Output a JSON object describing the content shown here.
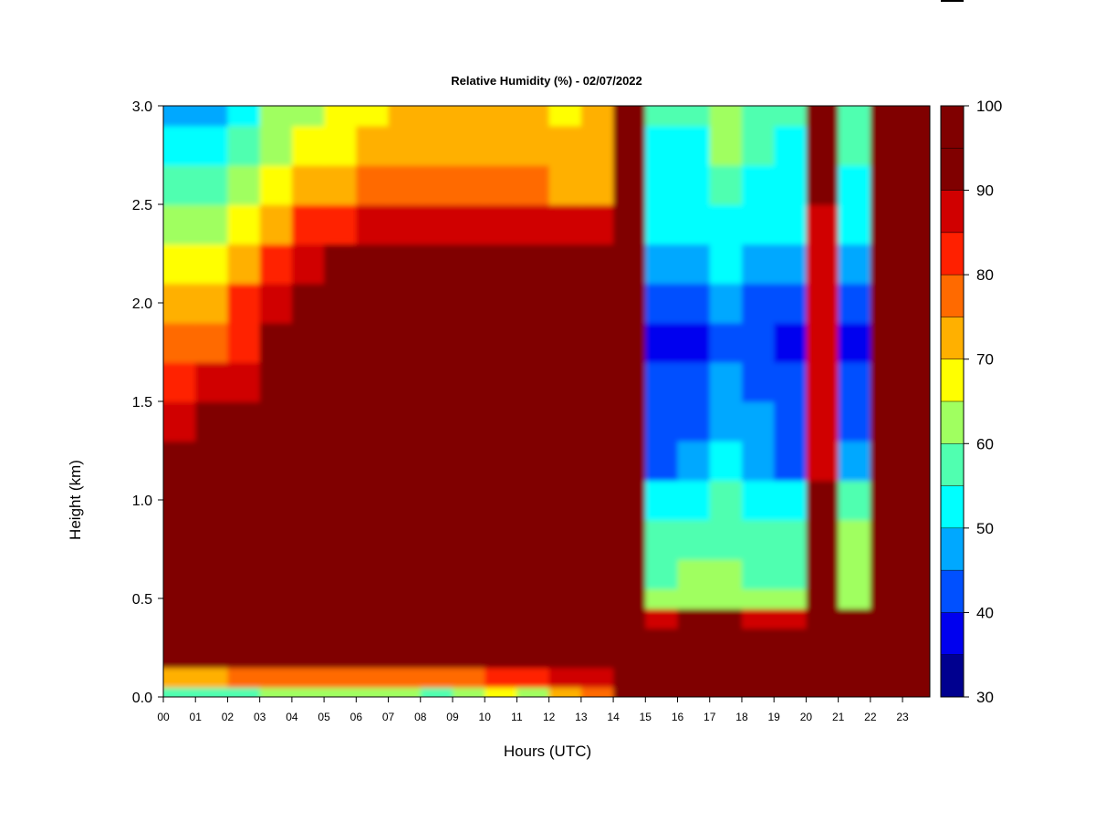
{
  "chart_data": {
    "type": "heatmap",
    "title": "Relative Humidity (%) - 02/07/2022",
    "xlabel": "Hours (UTC)",
    "ylabel": "Height (km)",
    "xlim": [
      0,
      23.85
    ],
    "ylim": [
      0,
      3.0
    ],
    "x_ticks": [
      "00",
      "01",
      "02",
      "03",
      "04",
      "05",
      "06",
      "07",
      "08",
      "09",
      "10",
      "11",
      "12",
      "13",
      "14",
      "15",
      "16",
      "17",
      "18",
      "19",
      "20",
      "21",
      "22",
      "23"
    ],
    "y_ticks": [
      "0.0",
      "0.5",
      "1.0",
      "1.5",
      "2.0",
      "2.5",
      "3.0"
    ],
    "colorbar": {
      "range": [
        30,
        100
      ],
      "tick_labels": [
        "30",
        "40",
        "50",
        "60",
        "70",
        "80",
        "90",
        "100"
      ],
      "levels": [
        30,
        35,
        40,
        45,
        50,
        55,
        60,
        65,
        70,
        75,
        80,
        85,
        90,
        95,
        100
      ],
      "colors": [
        "#00008f",
        "#0000ef",
        "#0050ff",
        "#00a8ff",
        "#00ffff",
        "#50ffb0",
        "#a0ff60",
        "#ffff00",
        "#ffb000",
        "#ff6a00",
        "#ff2000",
        "#d00000",
        "#800000",
        "#800000"
      ]
    },
    "x_hours": [
      0,
      1,
      2,
      3,
      4,
      5,
      6,
      7,
      8,
      9,
      10,
      11,
      12,
      13,
      14,
      15,
      16,
      17,
      18,
      19,
      20,
      21,
      22,
      23
    ],
    "y_heights_km": [
      0.0,
      0.1,
      0.2,
      0.3,
      0.4,
      0.5,
      0.6,
      0.8,
      1.0,
      1.2,
      1.4,
      1.6,
      1.8,
      2.0,
      2.2,
      2.4,
      2.6,
      2.8,
      3.0
    ],
    "z_relative_humidity": [
      [
        55,
        55,
        58,
        62,
        62,
        62,
        62,
        62,
        58,
        60,
        65,
        62,
        70,
        75,
        98,
        98,
        98,
        98,
        98,
        98,
        98,
        98,
        98,
        98
      ],
      [
        72,
        72,
        75,
        78,
        78,
        78,
        78,
        78,
        75,
        78,
        80,
        80,
        85,
        88,
        98,
        98,
        98,
        98,
        98,
        98,
        98,
        98,
        98,
        98
      ],
      [
        95,
        95,
        95,
        95,
        95,
        95,
        95,
        95,
        95,
        95,
        95,
        95,
        92,
        96,
        98,
        98,
        98,
        98,
        98,
        98,
        98,
        98,
        98,
        98
      ],
      [
        98,
        98,
        98,
        98,
        98,
        98,
        98,
        98,
        98,
        98,
        98,
        98,
        96,
        98,
        98,
        96,
        96,
        96,
        96,
        96,
        98,
        96,
        98,
        98
      ],
      [
        98,
        98,
        98,
        98,
        98,
        98,
        98,
        98,
        98,
        98,
        98,
        98,
        98,
        98,
        98,
        88,
        90,
        90,
        88,
        88,
        98,
        90,
        98,
        98
      ],
      [
        97,
        97,
        97,
        97,
        97,
        97,
        97,
        97,
        97,
        97,
        97,
        97,
        97,
        97,
        97,
        63,
        63,
        63,
        63,
        63,
        95,
        63,
        98,
        98
      ],
      [
        92,
        92,
        92,
        92,
        92,
        92,
        92,
        92,
        92,
        92,
        92,
        92,
        92,
        92,
        92,
        57,
        60,
        60,
        58,
        57,
        93,
        62,
        98,
        98
      ],
      [
        92,
        92,
        92,
        92,
        92,
        92,
        92,
        92,
        92,
        92,
        92,
        92,
        92,
        92,
        92,
        56,
        56,
        58,
        56,
        55,
        92,
        60,
        98,
        98
      ],
      [
        92,
        92,
        92,
        94,
        94,
        94,
        94,
        94,
        94,
        94,
        94,
        94,
        94,
        94,
        92,
        52,
        52,
        55,
        52,
        50,
        90,
        55,
        98,
        98
      ],
      [
        90,
        92,
        92,
        94,
        95,
        95,
        95,
        96,
        96,
        96,
        96,
        96,
        96,
        96,
        92,
        44,
        46,
        50,
        46,
        44,
        88,
        46,
        98,
        98
      ],
      [
        88,
        90,
        90,
        92,
        94,
        95,
        95,
        96,
        96,
        96,
        96,
        96,
        96,
        96,
        92,
        42,
        44,
        48,
        45,
        43,
        86,
        44,
        98,
        98
      ],
      [
        84,
        86,
        88,
        92,
        94,
        95,
        96,
        96,
        96,
        96,
        96,
        96,
        96,
        96,
        92,
        42,
        43,
        46,
        44,
        42,
        86,
        43,
        98,
        98
      ],
      [
        75,
        78,
        84,
        90,
        92,
        94,
        94,
        95,
        95,
        95,
        95,
        95,
        95,
        95,
        92,
        38,
        38,
        44,
        40,
        38,
        86,
        38,
        98,
        98
      ],
      [
        70,
        74,
        80,
        88,
        90,
        92,
        93,
        94,
        94,
        94,
        94,
        94,
        94,
        94,
        92,
        42,
        42,
        48,
        44,
        42,
        86,
        43,
        98,
        98
      ],
      [
        66,
        68,
        74,
        82,
        86,
        90,
        92,
        92,
        92,
        92,
        92,
        92,
        92,
        92,
        92,
        47,
        47,
        52,
        48,
        46,
        86,
        48,
        98,
        98
      ],
      [
        62,
        63,
        66,
        74,
        80,
        84,
        88,
        88,
        88,
        88,
        88,
        88,
        88,
        88,
        92,
        50,
        50,
        54,
        52,
        50,
        88,
        52,
        98,
        98
      ],
      [
        56,
        58,
        62,
        68,
        72,
        74,
        76,
        76,
        76,
        76,
        78,
        76,
        72,
        74,
        92,
        52,
        52,
        58,
        54,
        52,
        90,
        54,
        98,
        98
      ],
      [
        52,
        52,
        56,
        62,
        66,
        68,
        70,
        72,
        72,
        72,
        74,
        72,
        70,
        72,
        93,
        54,
        54,
        60,
        55,
        54,
        90,
        56,
        98,
        98
      ],
      [
        48,
        48,
        52,
        60,
        64,
        66,
        68,
        70,
        70,
        70,
        72,
        70,
        68,
        70,
        94,
        55,
        56,
        62,
        56,
        55,
        92,
        57,
        98,
        98
      ]
    ]
  }
}
